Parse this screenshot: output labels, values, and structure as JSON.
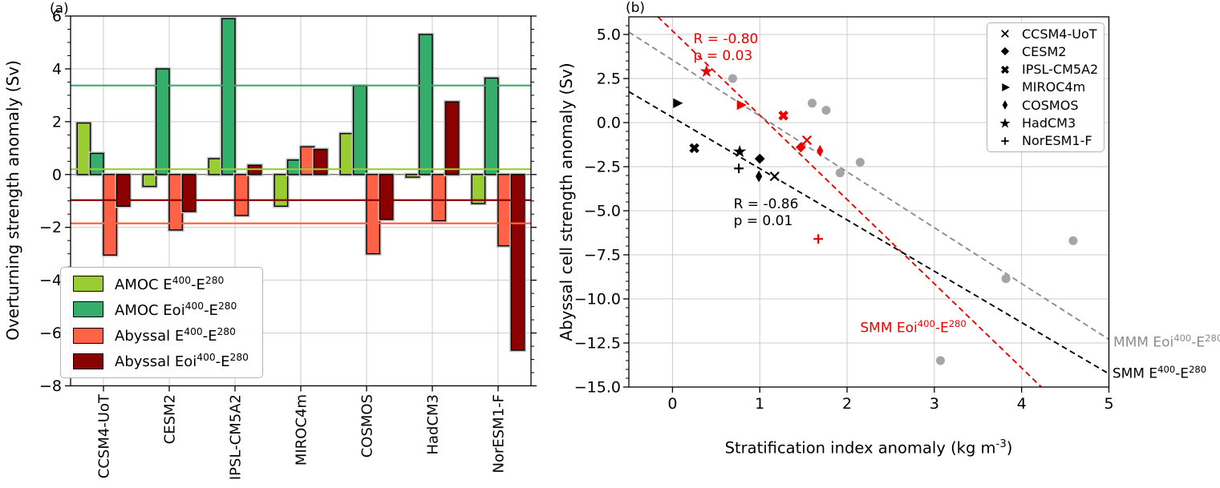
{
  "figure": {
    "panel_a_label": "(a)",
    "panel_b_label": "(b)"
  },
  "chart_data": [
    {
      "panel": "a",
      "type": "bar",
      "ylabel": "Overturning strength anomaly (Sv)",
      "ylim": [
        -8,
        6
      ],
      "yticks": [
        6,
        4,
        2,
        0,
        -2,
        -4,
        -6,
        -8
      ],
      "ytick_labels": [
        "6",
        "4",
        "2",
        "0",
        "−2",
        "−4",
        "−6",
        "−8"
      ],
      "grid": true,
      "categories": [
        "CCSM4-UoT",
        "CESM2",
        "IPSL-CM5A2",
        "MIROC4m",
        "COSMOS",
        "HadCM3",
        "NorESM1-F"
      ],
      "series": [
        {
          "name": "AMOC E^{400}-E^{280}",
          "color": "#9ACD32",
          "values": [
            1.95,
            -0.45,
            0.6,
            -1.2,
            1.55,
            -0.1,
            -1.1
          ]
        },
        {
          "name": "AMOC Eoi^{400}-E^{280}",
          "color": "#35AD6B",
          "values": [
            0.8,
            4.0,
            5.9,
            0.55,
            3.35,
            5.3,
            3.65
          ]
        },
        {
          "name": "Abyssal E^{400}-E^{280}",
          "color": "#FF6347",
          "values": [
            -3.05,
            -2.1,
            -1.55,
            1.05,
            -3.0,
            -1.75,
            -2.7
          ]
        },
        {
          "name": "Abyssal Eoi^{400}-E^{280}",
          "color": "#8B0000",
          "values": [
            -1.2,
            -1.4,
            0.35,
            0.95,
            -1.7,
            2.75,
            -6.65
          ]
        }
      ],
      "mean_lines": [
        {
          "series": "AMOC Eoi^{400}-E^{280}",
          "value": 3.37,
          "color": "#35AD6B"
        },
        {
          "series": "AMOC E^{400}-E^{280}",
          "value": 0.2,
          "color": "#9ACD32"
        },
        {
          "series": "Abyssal Eoi^{400}-E^{280}",
          "value": -0.97,
          "color": "#8B0000"
        },
        {
          "series": "Abyssal E^{400}-E^{280}",
          "value": -1.85,
          "color": "#FF6347"
        }
      ]
    },
    {
      "panel": "b",
      "type": "scatter",
      "xlabel": "Stratification index anomaly (kg m^{-3})",
      "ylabel": "Abyssal cell strength anomaly (Sv)",
      "xlim": [
        -0.5,
        5.0
      ],
      "ylim": [
        -15,
        6
      ],
      "xticks": [
        0,
        1,
        2,
        3,
        4,
        5
      ],
      "xtick_labels": [
        "0",
        "1",
        "2",
        "3",
        "4",
        "5"
      ],
      "yticks": [
        5.0,
        2.5,
        0.0,
        -2.5,
        -5.0,
        -7.5,
        -10.0,
        -12.5,
        -15.0
      ],
      "ytick_labels": [
        "5.0",
        "2.5",
        "0.0",
        "−2.5",
        "−5.0",
        "−7.5",
        "−10.0",
        "−12.5",
        "−15.0"
      ],
      "grid": true,
      "series_colors": {
        "e400": "#000000",
        "eoi400": "#EE0000"
      },
      "models": [
        {
          "name": "CCSM4-UoT",
          "marker": "x",
          "e400": [
            1.17,
            -3.05
          ],
          "eoi400": [
            1.54,
            -1.0
          ]
        },
        {
          "name": "CESM2",
          "marker": "D",
          "e400": [
            1.0,
            -2.05
          ],
          "eoi400": [
            1.47,
            -1.4
          ]
        },
        {
          "name": "IPSL-CM5A2",
          "marker": "X",
          "e400": [
            0.25,
            -1.45
          ],
          "eoi400": [
            1.27,
            0.4
          ]
        },
        {
          "name": "MIROC4m",
          "marker": ">",
          "e400": [
            0.05,
            1.1
          ],
          "eoi400": [
            0.78,
            1.0
          ]
        },
        {
          "name": "COSMOS",
          "marker": "d",
          "e400": [
            0.99,
            -3.05
          ],
          "eoi400": [
            1.69,
            -1.6
          ]
        },
        {
          "name": "HadCM3",
          "marker": "*",
          "e400": [
            0.77,
            -1.65
          ],
          "eoi400": [
            0.39,
            2.9
          ]
        },
        {
          "name": "NorESM1-F",
          "marker": "+",
          "e400": [
            0.76,
            -2.6
          ],
          "eoi400": [
            1.67,
            -6.6
          ]
        }
      ],
      "gray_points": {
        "color": "#A5A5A5",
        "points": [
          [
            0.69,
            2.5
          ],
          [
            1.6,
            1.1
          ],
          [
            1.76,
            0.7
          ],
          [
            1.92,
            -2.85
          ],
          [
            2.15,
            -2.25
          ],
          [
            3.07,
            -13.5
          ],
          [
            3.82,
            -8.85
          ],
          [
            4.59,
            -6.7
          ]
        ]
      },
      "fit_lines": [
        {
          "name": "SMM Eoi^{400}-E^{280}",
          "color": "#EE0000",
          "slope": -4.78,
          "intercept": 5.2,
          "label_at": [
            2.15,
            -11.1
          ]
        },
        {
          "name": "SMM E^{400}-E^{280}",
          "color": "#000000",
          "slope": -2.91,
          "intercept": 0.3,
          "label_at": [
            5.04,
            -13.7
          ]
        },
        {
          "name": "MMM Eoi^{400}-E^{280}",
          "color": "#8C8C8C",
          "slope": -3.17,
          "intercept": 3.55,
          "label_at": [
            5.05,
            -11.9
          ]
        }
      ],
      "annotations": [
        {
          "lines": [
            "R = -0.80",
            "p = 0.03"
          ],
          "color": "#EE0000",
          "at": [
            0.24,
            5.2
          ]
        },
        {
          "lines": [
            "R = -0.86",
            "p = 0.01"
          ],
          "color": "#000000",
          "at": [
            0.7,
            -4.2
          ]
        }
      ]
    }
  ],
  "style_colors": {
    "grid": "#CBCBCB",
    "bar_halo": "#C4C4C4",
    "spine": "#000000"
  }
}
